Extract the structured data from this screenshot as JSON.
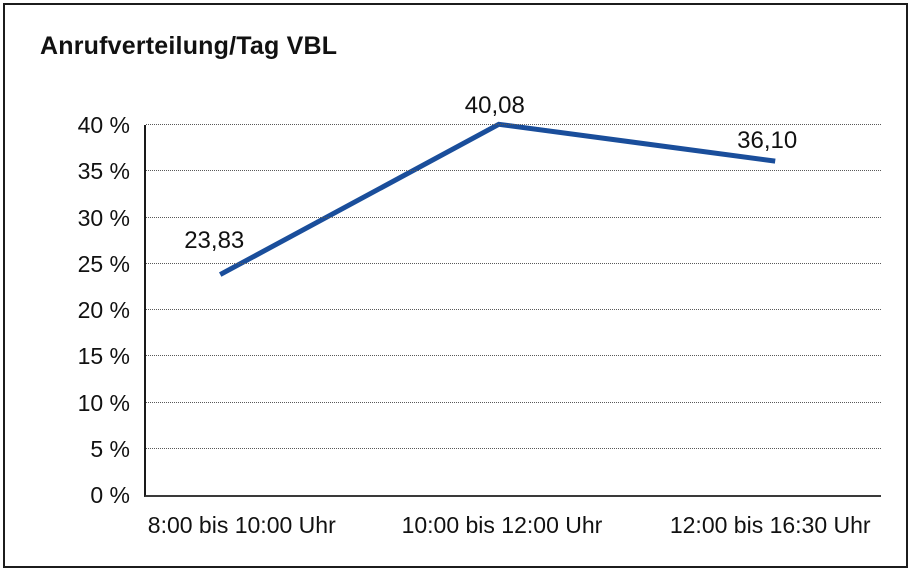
{
  "window": {
    "background": "#ffffff",
    "frame_border_color": "#1c1c1c"
  },
  "chart_data": {
    "type": "line",
    "title": "Anrufverteilung/Tag VBL",
    "categories": [
      "8:00 bis 10:00 Uhr",
      "10:00 bis 12:00 Uhr",
      "12:00 bis 16:30 Uhr"
    ],
    "series": [
      {
        "name": "Anrufverteilung",
        "values": [
          23.83,
          40.08,
          36.1
        ],
        "value_labels": [
          "23,83",
          "40,08",
          "36,10"
        ],
        "color": "#1A4E9B"
      }
    ],
    "xlabel": "",
    "ylabel": "",
    "ylim": [
      0,
      40
    ],
    "y_tick_step": 5,
    "y_ticks": [
      "0 %",
      "5 %",
      "10 %",
      "15 %",
      "20 %",
      "25 %",
      "30 %",
      "35 %",
      "40 %"
    ],
    "grid": "horizontal-dotted",
    "gridline_color": "#595959",
    "axis_color": "#1a1a1a",
    "legend_position": "none"
  }
}
